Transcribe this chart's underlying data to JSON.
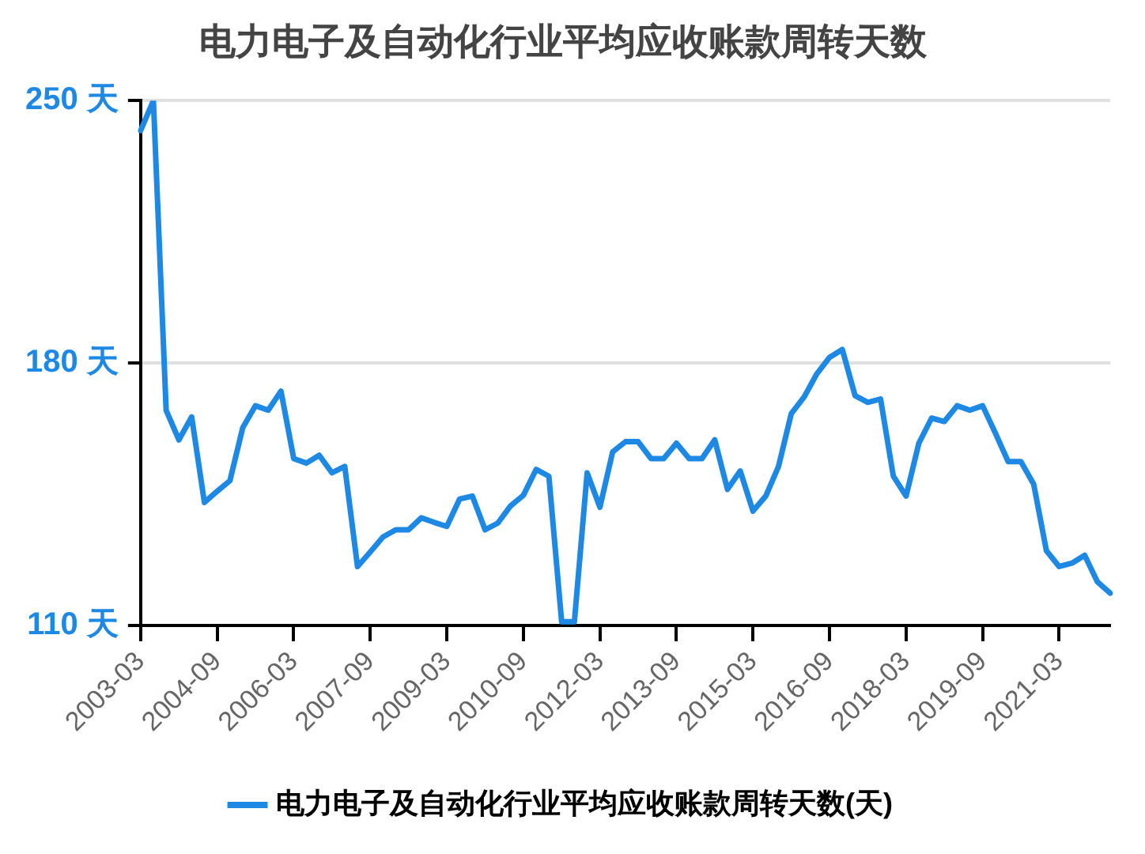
{
  "chart_data": {
    "type": "line",
    "title": "电力电子及自动化行业平均应收账款周转天数",
    "categories": [
      "2003-03",
      null,
      null,
      null,
      null,
      null,
      "2004-09",
      null,
      null,
      null,
      null,
      null,
      "2006-03",
      null,
      null,
      null,
      null,
      null,
      "2007-09",
      null,
      null,
      null,
      null,
      null,
      "2009-03",
      null,
      null,
      null,
      null,
      null,
      "2010-09",
      null,
      null,
      null,
      null,
      null,
      "2012-03",
      null,
      null,
      null,
      null,
      null,
      "2013-09",
      null,
      null,
      null,
      null,
      null,
      "2015-03",
      null,
      null,
      null,
      null,
      null,
      "2016-09",
      null,
      null,
      null,
      null,
      null,
      "2018-03",
      null,
      null,
      null,
      null,
      null,
      "2019-09",
      null,
      null,
      null,
      null,
      null,
      "2021-03",
      null,
      null,
      null,
      null
    ],
    "series": [
      {
        "name": "电力电子及自动化行业平均应收账款周转天数(天)",
        "color": "#1e88e5",
        "values": [
          242,
          250,
          167.4,
          159.5,
          165.6,
          142.8,
          145.8,
          148.6,
          162.7,
          168.6,
          167.4,
          172.5,
          154.5,
          153.3,
          155.4,
          150.7,
          152.4,
          125.7,
          129.6,
          133.6,
          135.5,
          135.5,
          138.7,
          137.5,
          136.4,
          143.7,
          144.5,
          135.5,
          137.3,
          141.9,
          144.7,
          151.6,
          149.8,
          111,
          111,
          150.7,
          141.5,
          156.3,
          159,
          159,
          154.5,
          154.5,
          158.6,
          154.5,
          154.5,
          159.5,
          146.3,
          151.2,
          140.5,
          144.5,
          152.4,
          166.5,
          170.9,
          177.1,
          181.5,
          183.6,
          171.3,
          169.5,
          170.4,
          149.8,
          144.5,
          158.6,
          165.3,
          164.4,
          168.6,
          167.4,
          168.6,
          161.3,
          153.7,
          153.7,
          147.7,
          129.9,
          125.7,
          126.6,
          128.7,
          121.6,
          118.6
        ]
      }
    ],
    "ylim": [
      110,
      250
    ],
    "yticks": [
      {
        "value": 110,
        "label": "110 天"
      },
      {
        "value": 180,
        "label": "180 天"
      },
      {
        "value": 250,
        "label": "250 天"
      }
    ],
    "grid": "y",
    "legend": "bottom",
    "marker": "none",
    "line_style": "solid"
  }
}
